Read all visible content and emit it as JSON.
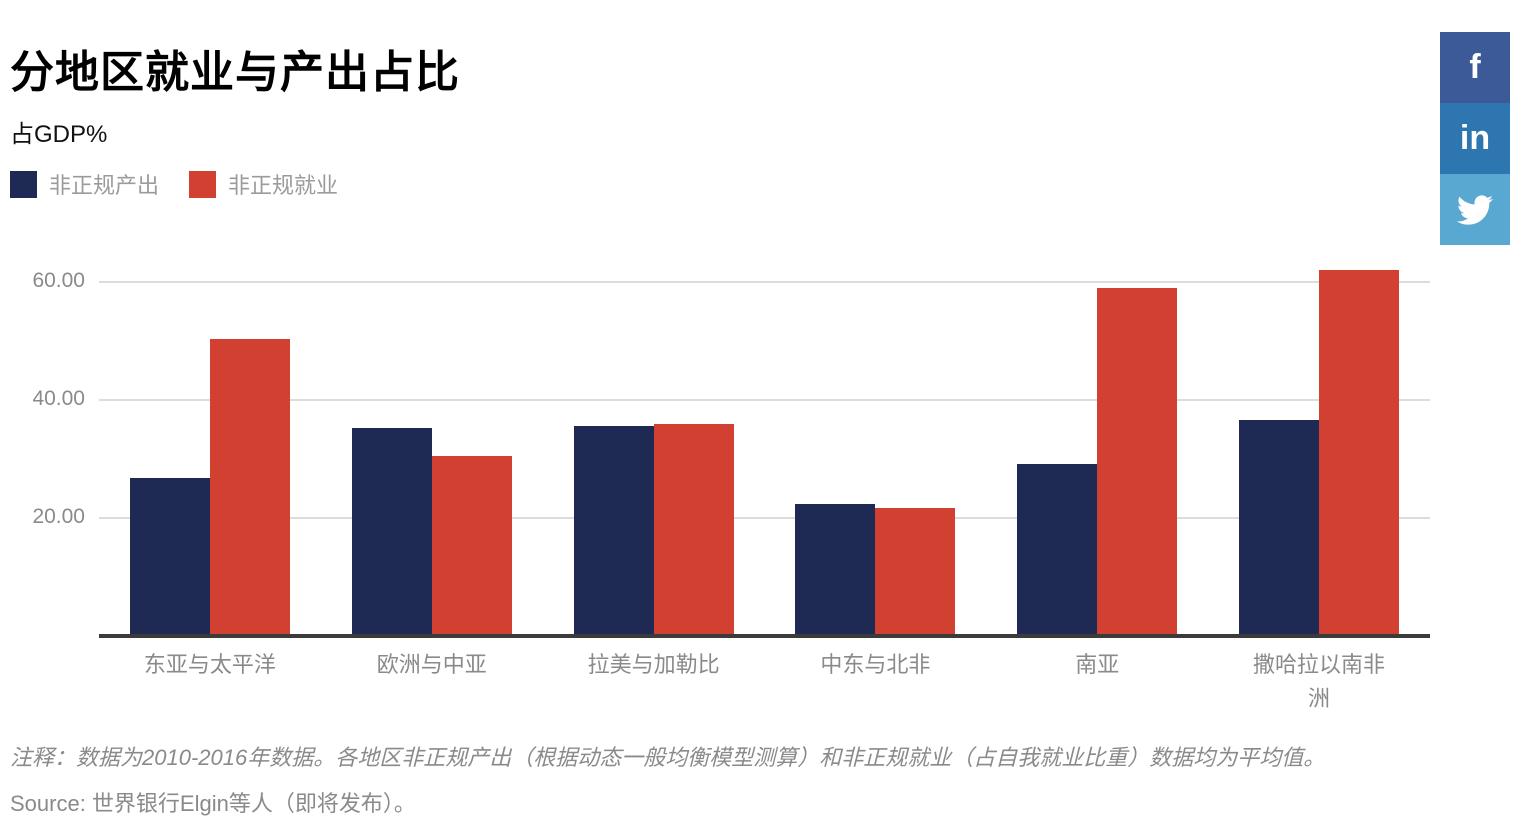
{
  "header": {
    "title": "分地区就业与产出占比",
    "subtitle": "占GDP%"
  },
  "social": {
    "items": [
      {
        "name": "facebook",
        "glyph": "f",
        "color": "#3c5a98"
      },
      {
        "name": "linkedin",
        "glyph": "in",
        "color": "#2d76af"
      },
      {
        "name": "twitter",
        "glyph": "",
        "color": "#58a8d1"
      }
    ]
  },
  "chart_data": {
    "type": "bar",
    "categories": [
      "东亚与太平洋",
      "欧洲与中亚",
      "拉美与加勒比",
      "中东与北非",
      "南亚",
      "撒哈拉以南非洲"
    ],
    "series": [
      {
        "name": "非正规产出",
        "color": "#1f2a54",
        "values": [
          26.8,
          35.3,
          35.6,
          22.4,
          29.2,
          36.6
        ]
      },
      {
        "name": "非正规就业",
        "color": "#d24032",
        "values": [
          50.3,
          30.5,
          35.9,
          21.7,
          59.0,
          62.0
        ]
      }
    ],
    "title": "分地区就业与产出占比",
    "xlabel": "",
    "ylabel": "占GDP%",
    "ylim": [
      0,
      65.4
    ],
    "yticks": [
      20,
      40,
      60
    ],
    "ytick_labels": [
      "20.00",
      "40.00",
      "60.00"
    ],
    "grid": true,
    "legend_position": "top-left"
  },
  "footer": {
    "note": "注释：数据为2010-2016年数据。各地区非正规产出（根据动态一般均衡模型测算）和非正规就业（占自我就业比重）数据均为平均值。",
    "source": "Source: 世界银行Elgin等人（即将发布）。"
  }
}
